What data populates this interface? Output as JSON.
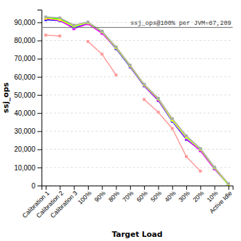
{
  "chart_data": {
    "type": "line",
    "xlabel": "Target Load",
    "ylabel": "ssj_ops",
    "categories": [
      "Calibration 1",
      "Calibration 2",
      "Calibration 3",
      "100%",
      "90%",
      "80%",
      "70%",
      "60%",
      "50%",
      "40%",
      "30%",
      "20%",
      "10%",
      "Active Idle"
    ],
    "ylim": [
      0,
      97000
    ],
    "yticks": [
      0,
      {
        "value": 10000,
        "label": "10,000"
      },
      {
        "value": 20000,
        "label": "20,000"
      },
      {
        "value": 30000,
        "label": "30,000"
      },
      {
        "value": 40000,
        "label": "40,000"
      },
      {
        "value": 50000,
        "label": "50,000"
      },
      {
        "value": 60000,
        "label": "60,000"
      },
      {
        "value": 70000,
        "label": "70,000"
      },
      {
        "value": 80000,
        "label": "80,000"
      },
      {
        "value": 90000,
        "label": "90,000"
      }
    ],
    "grid": true,
    "marker": "square",
    "reference_line": {
      "value": 87209,
      "label": "ssj_ops@100% per JVM=87,209"
    },
    "series": [
      {
        "color": "#FF9999",
        "values": [
          83000,
          82500,
          null,
          79500,
          72500,
          61000,
          null,
          47500,
          40500,
          31500,
          16000,
          8000,
          null,
          null
        ]
      },
      {
        "color": "#0000FF",
        "values": [
          91500,
          91000,
          87000,
          89500,
          84500,
          75500,
          65500,
          55000,
          47000,
          35500,
          25500,
          19500,
          9500,
          700
        ]
      },
      {
        "color": "#FF00FF",
        "values": [
          92000,
          91200,
          86500,
          89200,
          84000,
          75800,
          65800,
          55200,
          47200,
          35800,
          25800,
          19200,
          9200,
          500
        ]
      },
      {
        "color": "#00FFFF",
        "values": [
          92500,
          91800,
          87500,
          89800,
          84800,
          76000,
          66000,
          55500,
          47800,
          36000,
          26500,
          20000,
          9800,
          300
        ]
      },
      {
        "color": "#00FF00",
        "values": [
          92800,
          92000,
          88000,
          90000,
          85000,
          76200,
          66200,
          55700,
          48000,
          36500,
          27000,
          20200,
          10000,
          500
        ]
      },
      {
        "color": "#FFFF00",
        "values": [
          92300,
          91500,
          87800,
          89900,
          84900,
          76100,
          66100,
          55600,
          47900,
          36200,
          26800,
          20100,
          9900,
          600
        ]
      },
      {
        "color": "#AAAAAA",
        "values": [
          93000,
          92500,
          88500,
          90200,
          85200,
          76500,
          66500,
          55900,
          48200,
          37000,
          27500,
          20500,
          10200,
          1100
        ]
      }
    ]
  }
}
